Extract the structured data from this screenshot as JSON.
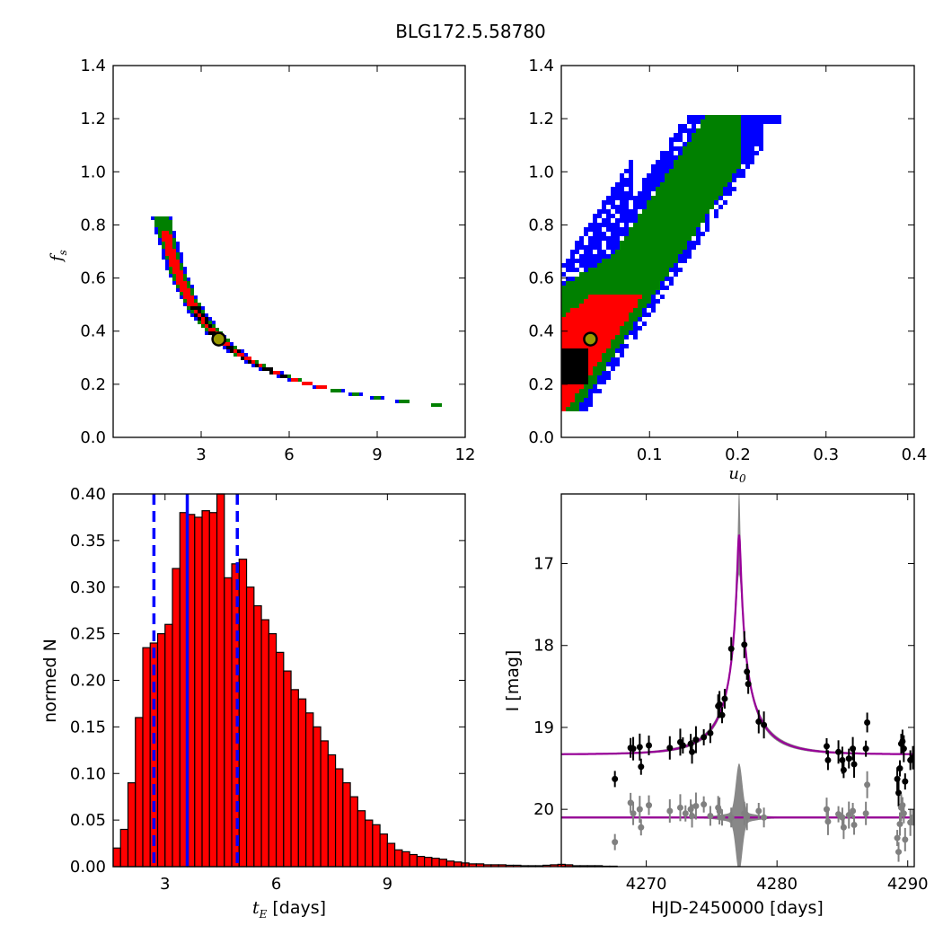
{
  "figure": {
    "title": "BLG172.5.58780"
  },
  "chart_data": [
    {
      "id": "fs_vs_tE",
      "type": "heatmap",
      "xlim": [
        0,
        12
      ],
      "ylim": [
        0.0,
        1.4
      ],
      "xticks": [
        3,
        6,
        9,
        12
      ],
      "yticks": [
        0.0,
        0.2,
        0.4,
        0.6,
        0.8,
        1.0,
        1.2,
        1.4
      ],
      "xlabel": "",
      "ylabel": "f_s",
      "colors": {
        "outer": "#0000ff",
        "middle": "#008000",
        "inner": "#ff0000",
        "core": "#000000",
        "marker_fill": "#999900",
        "marker_edge": "#000000"
      },
      "ridge": {
        "relation": "fs*tE = 1.33",
        "x_range": [
          1.6,
          11.1
        ]
      },
      "best_fit": {
        "x": 3.6,
        "y": 0.37
      }
    },
    {
      "id": "fs_vs_u0",
      "type": "heatmap",
      "xlim": [
        0.0,
        0.4
      ],
      "ylim": [
        0.0,
        1.4
      ],
      "xticks": [
        0.1,
        0.2,
        0.3,
        0.4
      ],
      "yticks": [
        0.0,
        0.2,
        0.4,
        0.6,
        0.8,
        1.0,
        1.2,
        1.4
      ],
      "xlabel": "u_0",
      "ylabel": "",
      "colors": {
        "outer": "#0000ff",
        "middle": "#008000",
        "inner": "#ff0000",
        "core": "#000000",
        "marker_fill": "#999900",
        "marker_edge": "#000000"
      },
      "ridge": {
        "relation": "fs = 0.15 + 5*u0",
        "x_range": [
          0.0,
          0.32
        ]
      },
      "best_fit": {
        "x": 0.033,
        "y": 0.37
      }
    },
    {
      "id": "tE_histogram",
      "type": "bar",
      "xlim": [
        1.6,
        11.1
      ],
      "ylim": [
        0.0,
        0.4
      ],
      "xticks": [
        3,
        6,
        9
      ],
      "yticks": [
        0.0,
        0.05,
        0.1,
        0.15,
        0.2,
        0.25,
        0.3,
        0.35,
        0.4
      ],
      "xlabel": "t_E [days]",
      "ylabel": "normed N",
      "bar_color": "#ff0000",
      "bar_edge": "#000000",
      "bin_start": 1.6,
      "bin_width": 0.2,
      "values": [
        0.02,
        0.04,
        0.09,
        0.16,
        0.235,
        0.24,
        0.25,
        0.26,
        0.32,
        0.38,
        0.378,
        0.375,
        0.382,
        0.38,
        0.4,
        0.31,
        0.325,
        0.33,
        0.3,
        0.28,
        0.265,
        0.25,
        0.23,
        0.21,
        0.19,
        0.18,
        0.165,
        0.15,
        0.135,
        0.12,
        0.105,
        0.09,
        0.075,
        0.06,
        0.05,
        0.045,
        0.035,
        0.025,
        0.018,
        0.016,
        0.013,
        0.011,
        0.01,
        0.009,
        0.008,
        0.006,
        0.005,
        0.004,
        0.003,
        0.003,
        0.002,
        0.002,
        0.002,
        0.0015,
        0.0015,
        0.001,
        0.001,
        0.001,
        0.0015,
        0.002,
        0.0025,
        0.002,
        0.001,
        0.001,
        0.001,
        0.001,
        0.0005,
        0.0005
      ],
      "vlines": [
        {
          "x": 2.7,
          "style": "dashed",
          "color": "#0000ff"
        },
        {
          "x": 3.6,
          "style": "solid",
          "color": "#0000ff"
        },
        {
          "x": 4.95,
          "style": "dashed",
          "color": "#0000ff"
        }
      ]
    },
    {
      "id": "light_curve",
      "type": "scatter",
      "xlim": [
        4263.5,
        4290.5
      ],
      "ylim": [
        20.7,
        16.15
      ],
      "y_inverted": true,
      "xticks": [
        4270,
        4280,
        4290
      ],
      "yticks": [
        17,
        18,
        19,
        20
      ],
      "xlabel": "HJD-2450000 [days]",
      "ylabel": "I [mag]",
      "model": {
        "t0": 4277.1,
        "tE": 3.6,
        "u0": 0.033,
        "fs": 0.37,
        "I_base": 19.33,
        "line_color": "#990099",
        "band_color": "#888888"
      },
      "residual_offset_mag": 20.1,
      "series": [
        {
          "name": "",
          "color": "#000000",
          "points": [
            [
              4267.6,
              19.63
            ],
            [
              4268.8,
              19.25
            ],
            [
              4269.0,
              19.26
            ],
            [
              4269.5,
              19.24
            ],
            [
              4269.6,
              19.48
            ],
            [
              4270.2,
              19.22
            ],
            [
              4271.8,
              19.25
            ],
            [
              4272.6,
              19.18
            ],
            [
              4272.8,
              19.22
            ],
            [
              4273.4,
              19.2
            ],
            [
              4273.5,
              19.3
            ],
            [
              4273.8,
              19.15
            ],
            [
              4274.4,
              19.12
            ],
            [
              4274.9,
              19.07
            ],
            [
              4275.5,
              18.74
            ],
            [
              4275.6,
              18.72
            ],
            [
              4275.8,
              18.85
            ],
            [
              4276.0,
              18.65
            ],
            [
              4276.5,
              18.04
            ],
            [
              4277.5,
              17.99
            ],
            [
              4277.7,
              18.32
            ],
            [
              4277.8,
              18.47
            ],
            [
              4278.6,
              18.93
            ],
            [
              4279.0,
              18.97
            ],
            [
              4283.8,
              19.23
            ],
            [
              4283.9,
              19.4
            ],
            [
              4284.7,
              19.3
            ],
            [
              4285.0,
              19.4
            ],
            [
              4285.1,
              19.52
            ],
            [
              4285.5,
              19.38
            ],
            [
              4285.8,
              19.26
            ],
            [
              4285.9,
              19.45
            ],
            [
              4286.8,
              19.26
            ],
            [
              4286.9,
              18.94
            ],
            [
              4289.2,
              19.63
            ],
            [
              4289.3,
              19.8
            ],
            [
              4289.4,
              19.5
            ],
            [
              4289.5,
              19.2
            ],
            [
              4289.6,
              19.17
            ],
            [
              4289.7,
              19.26
            ],
            [
              4289.8,
              19.66
            ],
            [
              4290.2,
              19.4
            ],
            [
              4290.4,
              19.37
            ]
          ]
        },
        {
          "name": "",
          "color": "#808080",
          "points": [
            [
              4267.6,
              20.4
            ],
            [
              4268.8,
              19.92
            ],
            [
              4269.0,
              20.05
            ],
            [
              4269.5,
              20.0
            ],
            [
              4269.6,
              20.22
            ],
            [
              4270.2,
              19.95
            ],
            [
              4271.8,
              20.02
            ],
            [
              4272.6,
              19.98
            ],
            [
              4273.0,
              20.05
            ],
            [
              4273.4,
              20.0
            ],
            [
              4273.5,
              20.08
            ],
            [
              4273.8,
              19.96
            ],
            [
              4274.4,
              19.94
            ],
            [
              4274.9,
              20.08
            ],
            [
              4275.5,
              19.98
            ],
            [
              4275.6,
              20.02
            ],
            [
              4275.8,
              20.1
            ],
            [
              4276.5,
              20.1
            ],
            [
              4277.5,
              20.05
            ],
            [
              4277.7,
              20.09
            ],
            [
              4278.6,
              20.02
            ],
            [
              4279.0,
              20.1
            ],
            [
              4283.8,
              20.0
            ],
            [
              4283.9,
              20.15
            ],
            [
              4284.7,
              20.06
            ],
            [
              4285.0,
              20.1
            ],
            [
              4285.1,
              20.22
            ],
            [
              4285.5,
              20.07
            ],
            [
              4285.8,
              20.02
            ],
            [
              4285.9,
              20.19
            ],
            [
              4286.8,
              20.05
            ],
            [
              4286.9,
              19.7
            ],
            [
              4289.2,
              20.35
            ],
            [
              4289.3,
              20.52
            ],
            [
              4289.4,
              20.18
            ],
            [
              4289.5,
              19.98
            ],
            [
              4289.6,
              19.95
            ],
            [
              4289.7,
              20.05
            ],
            [
              4289.8,
              20.37
            ],
            [
              4290.2,
              20.16
            ],
            [
              4290.4,
              20.1
            ]
          ]
        }
      ]
    }
  ]
}
